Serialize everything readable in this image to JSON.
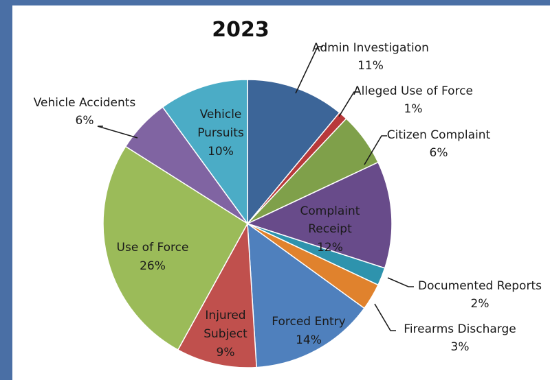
{
  "chart_data": {
    "type": "pie",
    "title": "2023",
    "start_angle_deg": 0,
    "direction": "clockwise",
    "slices": [
      {
        "name": "Admin Investigation",
        "value": 11,
        "label": "11%",
        "color": "#3c6598"
      },
      {
        "name": "Alleged Use of Force",
        "value": 1,
        "label": "1%",
        "color": "#b8393a"
      },
      {
        "name": "Citizen Complaint",
        "value": 6,
        "label": "6%",
        "color": "#7fa04a"
      },
      {
        "name": "Complaint Receipt",
        "value": 12,
        "label": "12%",
        "color": "#684b8a"
      },
      {
        "name": "Documented Reports",
        "value": 2,
        "label": "2%",
        "color": "#2e93ad"
      },
      {
        "name": "Firearms Discharge",
        "value": 3,
        "label": "3%",
        "color": "#e0822d"
      },
      {
        "name": "Forced Entry",
        "value": 14,
        "label": "14%",
        "color": "#4f80bd"
      },
      {
        "name": "Injured Subject",
        "value": 9,
        "label": "9%",
        "color": "#c0504d"
      },
      {
        "name": "Use of Force",
        "value": 26,
        "label": "26%",
        "color": "#9bbb59"
      },
      {
        "name": "Vehicle Accidents",
        "value": 6,
        "label": "6%",
        "color": "#8064a2"
      },
      {
        "name": "Vehicle Pursuits",
        "value": 10,
        "label": "10%",
        "color": "#4bacc6"
      }
    ]
  }
}
